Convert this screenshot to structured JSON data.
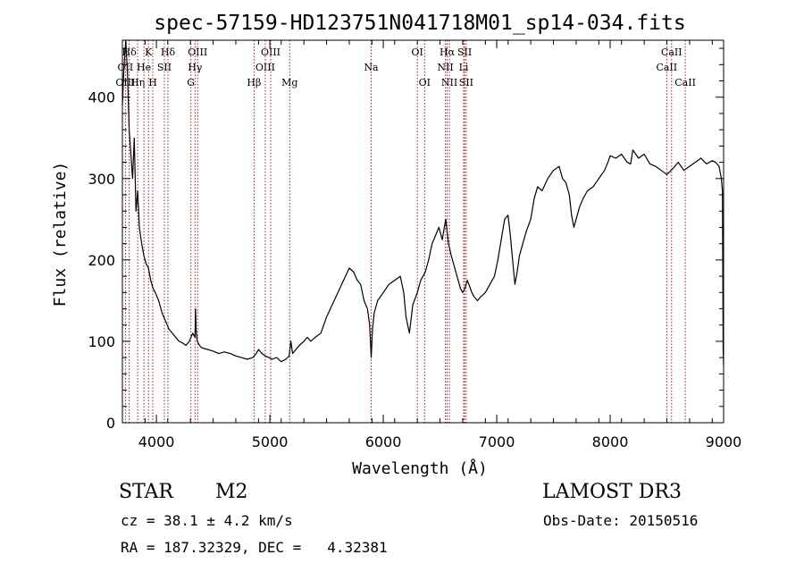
{
  "chart_data": {
    "type": "line",
    "title": "spec-57159-HD123751N041718M01_sp14-034.fits",
    "xlabel": "Wavelength (Å)",
    "ylabel": "Flux (relative)",
    "xlim": [
      3700,
      9000
    ],
    "ylim": [
      0,
      470
    ],
    "xticks": [
      4000,
      5000,
      6000,
      7000,
      8000,
      9000
    ],
    "yticks": [
      0,
      100,
      200,
      300,
      400
    ],
    "line_color": "#000000",
    "marker_color": "#b00000",
    "grid": false,
    "series": [
      {
        "x": [
          3700,
          3715,
          3730,
          3745,
          3760,
          3775,
          3790,
          3805,
          3820,
          3835,
          3850,
          3870,
          3890,
          3910,
          3930,
          3950,
          3970,
          3990,
          4020,
          4050,
          4080,
          4110,
          4140,
          4170,
          4200,
          4230,
          4260,
          4290,
          4320,
          4340,
          4345,
          4350,
          4360,
          4380,
          4400,
          4450,
          4500,
          4550,
          4600,
          4650,
          4700,
          4750,
          4800,
          4850,
          4880,
          4900,
          4930,
          4960,
          4990,
          5020,
          5060,
          5100,
          5140,
          5170,
          5185,
          5200,
          5230,
          5260,
          5300,
          5330,
          5360,
          5400,
          5450,
          5500,
          5550,
          5600,
          5650,
          5700,
          5740,
          5770,
          5800,
          5830,
          5860,
          5880,
          5893,
          5905,
          5920,
          5950,
          6000,
          6050,
          6100,
          6150,
          6180,
          6200,
          6230,
          6260,
          6300,
          6330,
          6370,
          6400,
          6430,
          6460,
          6490,
          6520,
          6550,
          6563,
          6575,
          6600,
          6620,
          6640,
          6660,
          6680,
          6700,
          6720,
          6740,
          6760,
          6780,
          6800,
          6830,
          6860,
          6900,
          6940,
          6980,
          7010,
          7040,
          7070,
          7100,
          7120,
          7140,
          7160,
          7180,
          7200,
          7230,
          7260,
          7300,
          7330,
          7360,
          7400,
          7450,
          7500,
          7550,
          7580,
          7610,
          7640,
          7660,
          7680,
          7700,
          7730,
          7760,
          7800,
          7850,
          7900,
          7950,
          7980,
          8000,
          8050,
          8100,
          8150,
          8180,
          8200,
          8250,
          8300,
          8350,
          8400,
          8450,
          8500,
          8550,
          8600,
          8650,
          8700,
          8750,
          8800,
          8850,
          8900,
          8930,
          8960,
          8980,
          8990,
          8996,
          9000
        ],
        "y": [
          390,
          440,
          470,
          430,
          360,
          330,
          300,
          350,
          260,
          285,
          240,
          220,
          205,
          195,
          190,
          175,
          165,
          160,
          150,
          135,
          125,
          115,
          110,
          105,
          100,
          98,
          95,
          100,
          110,
          105,
          140,
          115,
          100,
          95,
          92,
          90,
          88,
          85,
          87,
          85,
          82,
          80,
          78,
          80,
          85,
          90,
          85,
          82,
          80,
          78,
          80,
          75,
          78,
          82,
          100,
          85,
          90,
          95,
          100,
          105,
          100,
          105,
          110,
          130,
          145,
          160,
          175,
          190,
          185,
          175,
          170,
          150,
          140,
          120,
          80,
          115,
          135,
          150,
          160,
          170,
          175,
          180,
          160,
          130,
          110,
          145,
          160,
          175,
          185,
          200,
          220,
          230,
          240,
          225,
          250,
          235,
          220,
          205,
          195,
          185,
          175,
          165,
          160,
          165,
          175,
          168,
          160,
          155,
          150,
          155,
          160,
          170,
          180,
          200,
          225,
          250,
          255,
          230,
          200,
          170,
          185,
          205,
          220,
          235,
          250,
          275,
          290,
          285,
          300,
          310,
          315,
          300,
          295,
          280,
          255,
          240,
          250,
          265,
          275,
          285,
          290,
          300,
          310,
          320,
          328,
          325,
          330,
          320,
          318,
          335,
          325,
          330,
          318,
          315,
          310,
          305,
          312,
          320,
          310,
          315,
          320,
          325,
          318,
          322,
          320,
          315,
          300,
          285,
          90,
          70
        ]
      }
    ],
    "line_labels": [
      {
        "text": "Hδ",
        "x": 3760,
        "row": 1
      },
      {
        "text": "K",
        "x": 3930,
        "row": 1
      },
      {
        "text": "Hδ",
        "x": 4102,
        "row": 1
      },
      {
        "text": "OIII",
        "x": 4363,
        "row": 1
      },
      {
        "text": "OIII",
        "x": 5007,
        "row": 1
      },
      {
        "text": "OI",
        "x": 6300,
        "row": 1
      },
      {
        "text": "Hα",
        "x": 6563,
        "row": 1
      },
      {
        "text": "SII",
        "x": 6717,
        "row": 1
      },
      {
        "text": "CaII",
        "x": 8542,
        "row": 1
      },
      {
        "text": "OII",
        "x": 3727,
        "row": 2
      },
      {
        "text": "He",
        "x": 3890,
        "row": 2
      },
      {
        "text": "SII",
        "x": 4070,
        "row": 2
      },
      {
        "text": "Hγ",
        "x": 4340,
        "row": 2
      },
      {
        "text": "OIII",
        "x": 4959,
        "row": 2
      },
      {
        "text": "Na",
        "x": 5893,
        "row": 2
      },
      {
        "text": "NII",
        "x": 6548,
        "row": 2
      },
      {
        "text": "Li",
        "x": 6708,
        "row": 2
      },
      {
        "text": "CaII",
        "x": 8498,
        "row": 2
      },
      {
        "text": "OIII",
        "x": 3727,
        "row": 3
      },
      {
        "text": "Hη",
        "x": 3835,
        "row": 3
      },
      {
        "text": "H",
        "x": 3968,
        "row": 3
      },
      {
        "text": "G",
        "x": 4304,
        "row": 3
      },
      {
        "text": "Hβ",
        "x": 4861,
        "row": 3
      },
      {
        "text": "Mg",
        "x": 5175,
        "row": 3
      },
      {
        "text": "OI",
        "x": 6364,
        "row": 3
      },
      {
        "text": "NII",
        "x": 6583,
        "row": 3
      },
      {
        "text": "SII",
        "x": 6731,
        "row": 3
      },
      {
        "text": "CaII",
        "x": 8662,
        "row": 3
      }
    ],
    "marker_lines": [
      3727,
      3760,
      3835,
      3890,
      3930,
      3968,
      4070,
      4102,
      4304,
      4340,
      4363,
      4861,
      4959,
      5007,
      5175,
      5893,
      6300,
      6364,
      6548,
      6563,
      6583,
      6708,
      6717,
      6731,
      8498,
      8542,
      8662
    ]
  },
  "info": {
    "object_class": "STAR",
    "subclass": "M2",
    "survey": "LAMOST DR3",
    "redshift": "cz = 38.1 ± 4.2 km/s",
    "obs_date": "Obs-Date: 20150516",
    "coords": "RA = 187.32329, DEC =   4.32381"
  }
}
